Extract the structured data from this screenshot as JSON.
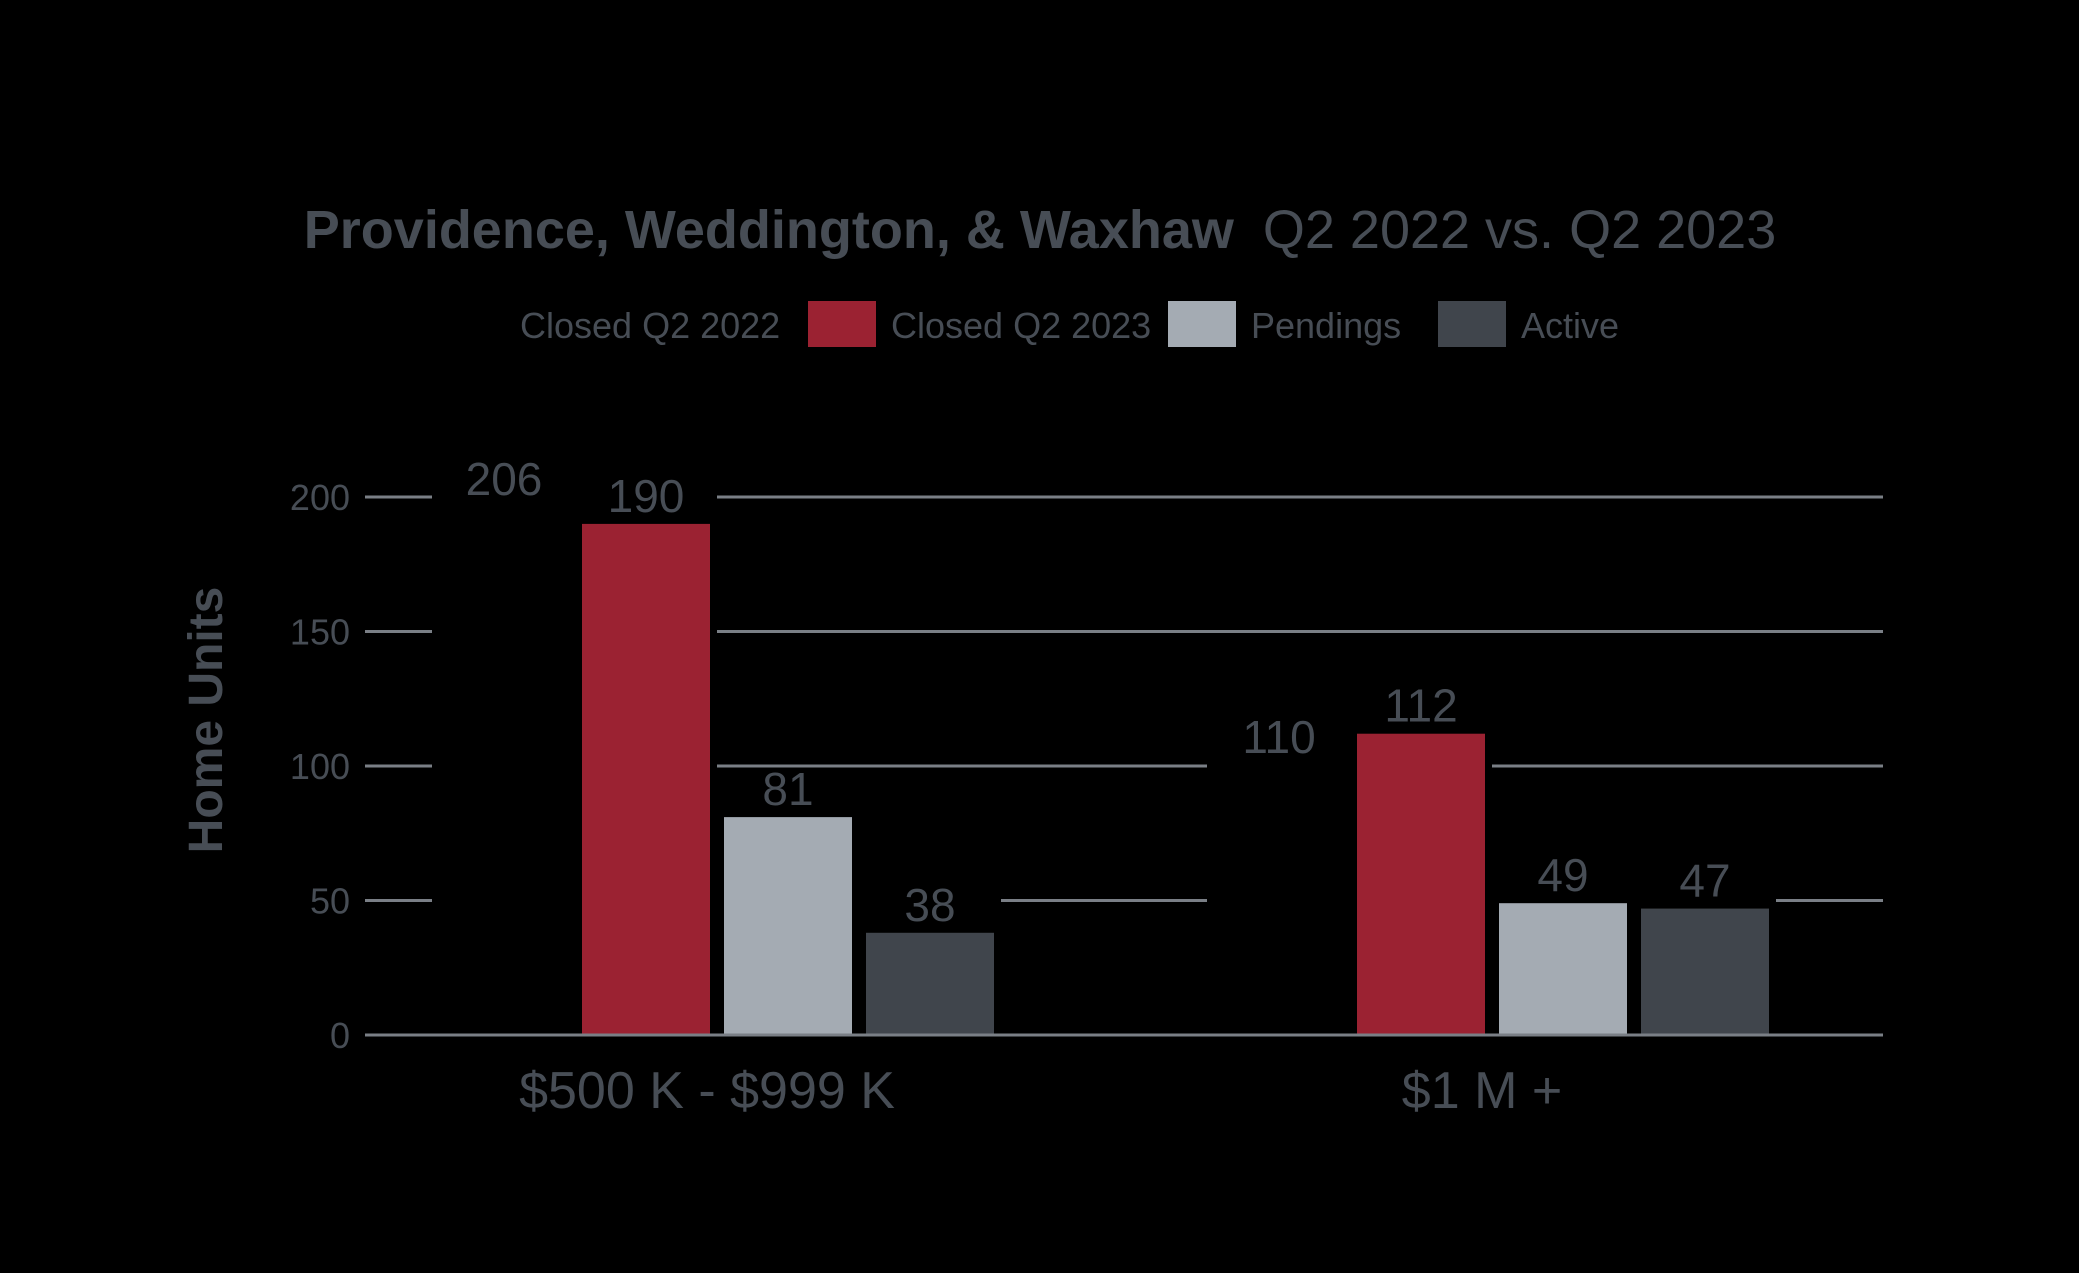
{
  "chart_data": {
    "type": "bar",
    "title_bold": "Providence, Weddington, & Waxhaw",
    "title_rest": "Q2 2022 vs. Q2 2023",
    "xlabel": "",
    "ylabel": "Home Units",
    "ylim": [
      0,
      200
    ],
    "yticks": [
      0,
      50,
      100,
      150,
      200
    ],
    "grid": true,
    "legend_position": "top",
    "categories": [
      "$500 K - $999 K",
      "$1 M +"
    ],
    "series": [
      {
        "name": "Closed Q2 2022",
        "values": [
          206,
          110
        ],
        "color": "#000000",
        "value_labels": [
          "206",
          "110"
        ]
      },
      {
        "name": "Closed Q2 2023",
        "values": [
          190,
          112
        ],
        "color": "#9b2232",
        "value_labels": [
          "190",
          "112"
        ]
      },
      {
        "name": "Pendings",
        "values": [
          81,
          49
        ],
        "color": "#a4abb3",
        "value_labels": [
          "81",
          "49"
        ]
      },
      {
        "name": "Active",
        "values": [
          38,
          47
        ],
        "color": "#40454c",
        "value_labels": [
          "38",
          "47"
        ]
      }
    ],
    "colors": {
      "background": "#000000",
      "text": "#474d55",
      "grid": "#7a7f86"
    }
  }
}
